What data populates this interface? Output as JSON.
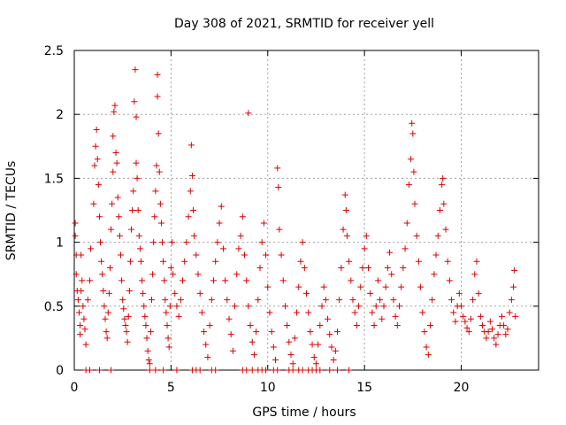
{
  "chart_data": {
    "type": "scatter",
    "title": "Day 308 of 2021, SRMTID for receiver yell",
    "xlabel": "GPS time / hours",
    "ylabel": "SRMTID / TECUs",
    "xlim": [
      0,
      24
    ],
    "ylim": [
      0,
      2.5
    ],
    "xticks": [
      0,
      5,
      10,
      15,
      20
    ],
    "yticks": [
      0,
      0.5,
      1,
      1.5,
      2,
      2.5
    ],
    "xtick_labels": [
      "0",
      "5",
      "10",
      "15",
      "20"
    ],
    "ytick_labels": [
      "0",
      "0.5",
      "1",
      "1.5",
      "2",
      "2.5"
    ],
    "grid": true,
    "marker": "+",
    "series_color": "#dd0000",
    "series": [
      {
        "name": "SRMTID",
        "points": [
          [
            0.05,
            1.15
          ],
          [
            0.05,
            1.05
          ],
          [
            0.1,
            0.9
          ],
          [
            0.1,
            0.75
          ],
          [
            0.15,
            0.62
          ],
          [
            0.2,
            0.55
          ],
          [
            0.25,
            0.45
          ],
          [
            0.3,
            0.35
          ],
          [
            0.3,
            0.28
          ],
          [
            0.35,
            0.62
          ],
          [
            0.35,
            0.9
          ],
          [
            0.4,
            0.7
          ],
          [
            0.45,
            0.5
          ],
          [
            0.5,
            0.4
          ],
          [
            0.55,
            0.32
          ],
          [
            0.6,
            0.2
          ],
          [
            0.7,
            0.55
          ],
          [
            0.8,
            0.7
          ],
          [
            0.85,
            0.95
          ],
          [
            1.0,
            1.3
          ],
          [
            1.05,
            1.6
          ],
          [
            1.1,
            1.75
          ],
          [
            1.15,
            1.88
          ],
          [
            1.2,
            1.65
          ],
          [
            1.25,
            1.45
          ],
          [
            1.3,
            1.2
          ],
          [
            1.35,
            1.0
          ],
          [
            1.4,
            0.85
          ],
          [
            1.45,
            0.75
          ],
          [
            1.5,
            0.62
          ],
          [
            1.55,
            0.5
          ],
          [
            1.6,
            0.4
          ],
          [
            1.65,
            0.3
          ],
          [
            1.7,
            0.25
          ],
          [
            1.75,
            0.45
          ],
          [
            1.8,
            0.6
          ],
          [
            1.85,
            0.8
          ],
          [
            1.9,
            1.1
          ],
          [
            1.95,
            1.3
          ],
          [
            2.0,
            1.55
          ],
          [
            2.0,
            1.83
          ],
          [
            2.05,
            2.02
          ],
          [
            2.1,
            2.07
          ],
          [
            2.15,
            1.7
          ],
          [
            2.2,
            1.62
          ],
          [
            2.25,
            1.35
          ],
          [
            2.3,
            1.2
          ],
          [
            2.35,
            1.05
          ],
          [
            2.4,
            0.9
          ],
          [
            2.45,
            0.7
          ],
          [
            2.5,
            0.55
          ],
          [
            2.55,
            0.48
          ],
          [
            2.6,
            0.4
          ],
          [
            2.65,
            0.35
          ],
          [
            2.7,
            0.3
          ],
          [
            2.75,
            0.22
          ],
          [
            2.8,
            0.42
          ],
          [
            2.85,
            0.62
          ],
          [
            2.9,
            0.85
          ],
          [
            2.95,
            1.1
          ],
          [
            3.0,
            1.25
          ],
          [
            3.05,
            1.4
          ],
          [
            3.1,
            2.1
          ],
          [
            3.15,
            2.35
          ],
          [
            3.2,
            1.98
          ],
          [
            3.2,
            1.62
          ],
          [
            3.25,
            1.5
          ],
          [
            3.3,
            1.25
          ],
          [
            3.35,
            1.05
          ],
          [
            3.4,
            0.95
          ],
          [
            3.45,
            0.85
          ],
          [
            3.5,
            0.7
          ],
          [
            3.55,
            0.6
          ],
          [
            3.6,
            0.5
          ],
          [
            3.65,
            0.42
          ],
          [
            3.7,
            0.35
          ],
          [
            3.75,
            0.25
          ],
          [
            3.8,
            0.15
          ],
          [
            3.85,
            0.08
          ],
          [
            3.9,
            0.05
          ],
          [
            3.95,
            0.3
          ],
          [
            4.0,
            0.55
          ],
          [
            4.05,
            0.75
          ],
          [
            4.1,
            1.0
          ],
          [
            4.15,
            1.2
          ],
          [
            4.2,
            1.4
          ],
          [
            4.25,
            1.6
          ],
          [
            4.3,
            2.31
          ],
          [
            4.3,
            2.14
          ],
          [
            4.35,
            1.85
          ],
          [
            4.4,
            1.55
          ],
          [
            4.45,
            1.3
          ],
          [
            4.5,
            1.15
          ],
          [
            4.55,
            1.0
          ],
          [
            4.6,
            0.85
          ],
          [
            4.65,
            0.7
          ],
          [
            4.7,
            0.55
          ],
          [
            4.75,
            0.45
          ],
          [
            4.8,
            0.35
          ],
          [
            4.85,
            0.25
          ],
          [
            4.9,
            0.18
          ],
          [
            4.95,
            0.5
          ],
          [
            5.0,
            0.8
          ],
          [
            5.05,
            1.0
          ],
          [
            5.1,
            0.75
          ],
          [
            5.2,
            0.6
          ],
          [
            5.3,
            0.5
          ],
          [
            5.4,
            0.42
          ],
          [
            5.5,
            0.55
          ],
          [
            5.6,
            0.7
          ],
          [
            5.7,
            0.85
          ],
          [
            5.8,
            1.0
          ],
          [
            5.9,
            1.2
          ],
          [
            6.0,
            1.4
          ],
          [
            6.05,
            1.76
          ],
          [
            6.1,
            1.52
          ],
          [
            6.15,
            1.25
          ],
          [
            6.2,
            1.05
          ],
          [
            6.3,
            0.9
          ],
          [
            6.4,
            0.75
          ],
          [
            6.5,
            0.6
          ],
          [
            6.6,
            0.45
          ],
          [
            6.7,
            0.3
          ],
          [
            6.8,
            0.2
          ],
          [
            6.9,
            0.1
          ],
          [
            7.0,
            0.35
          ],
          [
            7.1,
            0.55
          ],
          [
            7.2,
            0.7
          ],
          [
            7.3,
            0.85
          ],
          [
            7.4,
            1.0
          ],
          [
            7.5,
            1.15
          ],
          [
            7.6,
            1.28
          ],
          [
            7.7,
            0.95
          ],
          [
            7.8,
            0.7
          ],
          [
            7.9,
            0.55
          ],
          [
            8.0,
            0.4
          ],
          [
            8.1,
            0.28
          ],
          [
            8.2,
            0.15
          ],
          [
            8.3,
            0.5
          ],
          [
            8.4,
            0.75
          ],
          [
            8.5,
            0.95
          ],
          [
            8.6,
            1.05
          ],
          [
            8.7,
            1.2
          ],
          [
            8.8,
            0.9
          ],
          [
            8.9,
            0.7
          ],
          [
            9.0,
            0.5
          ],
          [
            9.0,
            2.01
          ],
          [
            9.1,
            0.35
          ],
          [
            9.2,
            0.22
          ],
          [
            9.3,
            0.12
          ],
          [
            9.4,
            0.3
          ],
          [
            9.5,
            0.55
          ],
          [
            9.6,
            0.8
          ],
          [
            9.7,
            1.0
          ],
          [
            9.8,
            1.15
          ],
          [
            9.9,
            0.9
          ],
          [
            10.0,
            0.65
          ],
          [
            10.1,
            0.45
          ],
          [
            10.2,
            0.3
          ],
          [
            10.3,
            0.18
          ],
          [
            10.4,
            0.08
          ],
          [
            10.5,
            1.58
          ],
          [
            10.55,
            1.43
          ],
          [
            10.6,
            1.1
          ],
          [
            10.7,
            0.9
          ],
          [
            10.8,
            0.7
          ],
          [
            10.9,
            0.5
          ],
          [
            11.0,
            0.35
          ],
          [
            11.1,
            0.22
          ],
          [
            11.2,
            0.12
          ],
          [
            11.3,
            0.05
          ],
          [
            11.4,
            0.25
          ],
          [
            11.5,
            0.45
          ],
          [
            11.6,
            0.65
          ],
          [
            11.7,
            0.85
          ],
          [
            11.8,
            1.0
          ],
          [
            11.9,
            0.8
          ],
          [
            12.0,
            0.6
          ],
          [
            12.1,
            0.45
          ],
          [
            12.2,
            0.3
          ],
          [
            12.3,
            0.2
          ],
          [
            12.4,
            0.1
          ],
          [
            12.5,
            0.05
          ],
          [
            12.6,
            0.2
          ],
          [
            12.7,
            0.35
          ],
          [
            12.8,
            0.5
          ],
          [
            12.9,
            0.65
          ],
          [
            13.0,
            0.55
          ],
          [
            13.1,
            0.4
          ],
          [
            13.2,
            0.28
          ],
          [
            13.3,
            0.18
          ],
          [
            13.4,
            0.08
          ],
          [
            13.5,
            0.15
          ],
          [
            13.6,
            0.3
          ],
          [
            13.7,
            0.55
          ],
          [
            13.8,
            0.8
          ],
          [
            13.9,
            1.1
          ],
          [
            14.0,
            1.37
          ],
          [
            14.05,
            1.25
          ],
          [
            14.1,
            1.05
          ],
          [
            14.2,
            0.85
          ],
          [
            14.3,
            0.7
          ],
          [
            14.4,
            0.55
          ],
          [
            14.5,
            0.45
          ],
          [
            14.6,
            0.35
          ],
          [
            14.7,
            0.5
          ],
          [
            14.8,
            0.65
          ],
          [
            14.9,
            0.8
          ],
          [
            15.0,
            0.95
          ],
          [
            15.1,
            1.05
          ],
          [
            15.2,
            0.8
          ],
          [
            15.3,
            0.6
          ],
          [
            15.4,
            0.45
          ],
          [
            15.5,
            0.35
          ],
          [
            15.6,
            0.5
          ],
          [
            15.7,
            0.7
          ],
          [
            15.8,
            0.55
          ],
          [
            15.9,
            0.4
          ],
          [
            16.0,
            0.5
          ],
          [
            16.1,
            0.65
          ],
          [
            16.2,
            0.8
          ],
          [
            16.3,
            0.92
          ],
          [
            16.4,
            0.75
          ],
          [
            16.5,
            0.55
          ],
          [
            16.6,
            0.42
          ],
          [
            16.7,
            0.35
          ],
          [
            16.8,
            0.5
          ],
          [
            16.9,
            0.65
          ],
          [
            17.0,
            0.8
          ],
          [
            17.1,
            0.95
          ],
          [
            17.2,
            1.15
          ],
          [
            17.3,
            1.45
          ],
          [
            17.4,
            1.65
          ],
          [
            17.45,
            1.93
          ],
          [
            17.5,
            1.85
          ],
          [
            17.55,
            1.55
          ],
          [
            17.6,
            1.3
          ],
          [
            17.7,
            1.05
          ],
          [
            17.8,
            0.85
          ],
          [
            17.9,
            0.65
          ],
          [
            18.0,
            0.45
          ],
          [
            18.1,
            0.3
          ],
          [
            18.2,
            0.18
          ],
          [
            18.3,
            0.12
          ],
          [
            18.4,
            0.35
          ],
          [
            18.5,
            0.55
          ],
          [
            18.6,
            0.75
          ],
          [
            18.7,
            0.9
          ],
          [
            18.8,
            1.05
          ],
          [
            18.9,
            1.25
          ],
          [
            19.0,
            1.45
          ],
          [
            19.05,
            1.5
          ],
          [
            19.1,
            1.3
          ],
          [
            19.2,
            1.1
          ],
          [
            19.3,
            0.85
          ],
          [
            19.4,
            0.7
          ],
          [
            19.5,
            0.55
          ],
          [
            19.6,
            0.45
          ],
          [
            19.7,
            0.38
          ],
          [
            19.8,
            0.5
          ],
          [
            19.9,
            0.6
          ],
          [
            20.0,
            0.5
          ],
          [
            20.1,
            0.42
          ],
          [
            20.2,
            0.38
          ],
          [
            20.3,
            0.33
          ],
          [
            20.4,
            0.3
          ],
          [
            20.5,
            0.4
          ],
          [
            20.6,
            0.55
          ],
          [
            20.7,
            0.75
          ],
          [
            20.8,
            0.85
          ],
          [
            20.9,
            0.6
          ],
          [
            21.0,
            0.42
          ],
          [
            21.1,
            0.35
          ],
          [
            21.2,
            0.3
          ],
          [
            21.3,
            0.25
          ],
          [
            21.4,
            0.3
          ],
          [
            21.5,
            0.38
          ],
          [
            21.6,
            0.32
          ],
          [
            21.7,
            0.25
          ],
          [
            21.8,
            0.2
          ],
          [
            21.9,
            0.28
          ],
          [
            22.0,
            0.35
          ],
          [
            22.1,
            0.42
          ],
          [
            22.2,
            0.35
          ],
          [
            22.3,
            0.28
          ],
          [
            22.4,
            0.32
          ],
          [
            22.5,
            0.45
          ],
          [
            22.6,
            0.55
          ],
          [
            22.7,
            0.65
          ],
          [
            22.75,
            0.78
          ],
          [
            22.8,
            0.42
          ],
          [
            0.6,
            0.0
          ],
          [
            0.8,
            0.0
          ],
          [
            1.3,
            0.0
          ],
          [
            1.9,
            0.0
          ],
          [
            3.9,
            0.0
          ],
          [
            4.2,
            0.0
          ],
          [
            4.6,
            0.0
          ],
          [
            5.3,
            0.0
          ],
          [
            6.1,
            0.0
          ],
          [
            6.3,
            0.0
          ],
          [
            6.5,
            0.0
          ],
          [
            7.1,
            0.0
          ],
          [
            7.3,
            0.0
          ],
          [
            8.7,
            0.0
          ],
          [
            8.9,
            0.0
          ],
          [
            9.2,
            0.0
          ],
          [
            9.5,
            0.0
          ],
          [
            9.7,
            0.0
          ],
          [
            9.9,
            0.0
          ],
          [
            10.3,
            0.0
          ],
          [
            10.5,
            0.0
          ],
          [
            11.1,
            0.0
          ],
          [
            11.3,
            0.0
          ],
          [
            11.6,
            0.0
          ],
          [
            11.8,
            0.0
          ],
          [
            12.1,
            0.0
          ],
          [
            12.3,
            0.0
          ],
          [
            12.5,
            0.0
          ],
          [
            12.7,
            0.0
          ],
          [
            13.2,
            0.0
          ],
          [
            13.6,
            0.0
          ],
          [
            14.2,
            0.0
          ]
        ]
      }
    ]
  }
}
